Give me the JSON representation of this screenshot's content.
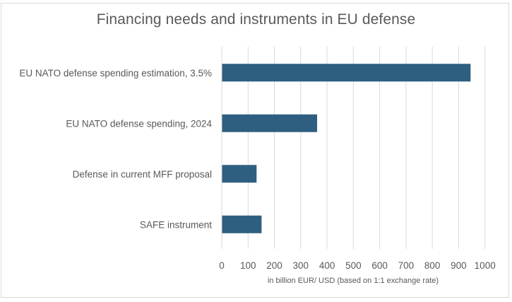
{
  "chart_data": {
    "type": "bar",
    "orientation": "horizontal",
    "title": "Financing needs and instruments in EU defense",
    "categories": [
      "EU NATO defense spending estimation, 3.5%",
      "EU NATO defense spending, 2024",
      "Defense in current MFF proposal",
      "SAFE instrument"
    ],
    "values": [
      944,
      361,
      131,
      150
    ],
    "xlabel": "in billion EUR/ USD (based on 1:1 exchange rate)",
    "ylabel": "",
    "xlim": [
      0,
      1000
    ],
    "xticks": [
      0,
      100,
      200,
      300,
      400,
      500,
      600,
      700,
      800,
      900,
      1000
    ],
    "grid": "vertical",
    "legend": "none",
    "bar_color": "#2E5F80"
  }
}
